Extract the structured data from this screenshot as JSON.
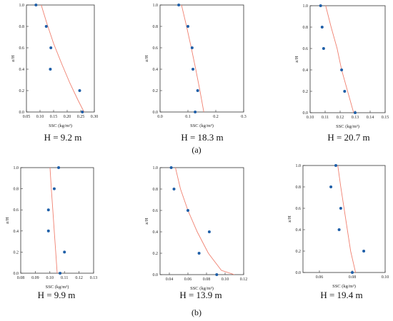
{
  "figure": {
    "panel_labels": [
      "(a)",
      "(b)"
    ]
  },
  "colors": {
    "point": "#1f5fa8",
    "line": "#f08070",
    "axis": "#333333"
  },
  "chart_data": [
    {
      "type": "scatter",
      "caption": "H = 9.2 m",
      "xlabel": "SSC (kg/m³)",
      "ylabel": "z/H",
      "xlim": [
        0.05,
        0.3
      ],
      "ylim": [
        0,
        1
      ],
      "xticks": [
        0.05,
        0.1,
        0.15,
        0.2,
        0.25,
        0.3
      ],
      "xtick_labels": [
        "0.05",
        "0.10",
        "0.15",
        "0.20",
        "0.25",
        "0.30"
      ],
      "yticks": [
        0,
        0.2,
        0.4,
        0.6,
        0.8,
        1.0
      ],
      "ytick_labels": [
        "0.0",
        "0.2",
        "0.4",
        "0.6",
        "0.8",
        "1.0"
      ],
      "points": [
        {
          "x": 0.085,
          "y": 1.0
        },
        {
          "x": 0.123,
          "y": 0.8
        },
        {
          "x": 0.14,
          "y": 0.6
        },
        {
          "x": 0.138,
          "y": 0.4
        },
        {
          "x": 0.246,
          "y": 0.2
        },
        {
          "x": 0.256,
          "y": 0.0
        }
      ],
      "fit": [
        {
          "x": 0.102,
          "y": 1.02
        },
        {
          "x": 0.125,
          "y": 0.83
        },
        {
          "x": 0.15,
          "y": 0.64
        },
        {
          "x": 0.18,
          "y": 0.45
        },
        {
          "x": 0.21,
          "y": 0.27
        },
        {
          "x": 0.24,
          "y": 0.11
        },
        {
          "x": 0.262,
          "y": 0.0
        }
      ]
    },
    {
      "type": "scatter",
      "caption": "H = 18.3 m",
      "xlabel": "SSC (kg/m³)",
      "ylabel": "z/H",
      "xlim": [
        0,
        0.3
      ],
      "ylim": [
        0,
        1
      ],
      "xticks": [
        0,
        0.1,
        0.2,
        0.3
      ],
      "xtick_labels": [
        "0.0",
        "0.1",
        "0.2",
        "0.3"
      ],
      "yticks": [
        0,
        0.2,
        0.4,
        0.6,
        0.8,
        1.0
      ],
      "ytick_labels": [
        "0.0",
        "0.2",
        "0.4",
        "0.6",
        "0.8",
        "1.0"
      ],
      "points": [
        {
          "x": 0.067,
          "y": 1.0
        },
        {
          "x": 0.1,
          "y": 0.8
        },
        {
          "x": 0.115,
          "y": 0.6
        },
        {
          "x": 0.118,
          "y": 0.4
        },
        {
          "x": 0.135,
          "y": 0.2
        },
        {
          "x": 0.126,
          "y": 0.0
        }
      ],
      "fit": [
        {
          "x": 0.075,
          "y": 1.02
        },
        {
          "x": 0.095,
          "y": 0.8
        },
        {
          "x": 0.112,
          "y": 0.6
        },
        {
          "x": 0.128,
          "y": 0.4
        },
        {
          "x": 0.143,
          "y": 0.2
        },
        {
          "x": 0.157,
          "y": 0.0
        }
      ]
    },
    {
      "type": "scatter",
      "caption": "H = 20.7 m",
      "xlabel": "SSC (kg/m³)",
      "ylabel": "z/H",
      "xlim": [
        0.1,
        0.15
      ],
      "ylim": [
        0,
        1
      ],
      "xticks": [
        0.1,
        0.11,
        0.12,
        0.13,
        0.14,
        0.15
      ],
      "xtick_labels": [
        "0.10",
        "0.11",
        "0.12",
        "0.13",
        "0.14",
        "0.15"
      ],
      "yticks": [
        0,
        0.2,
        0.4,
        0.6,
        0.8,
        1.0
      ],
      "ytick_labels": [
        "0.0",
        "0.2",
        "0.4",
        "0.6",
        "0.8",
        "1.0"
      ],
      "points": [
        {
          "x": 0.107,
          "y": 1.0
        },
        {
          "x": 0.108,
          "y": 0.8
        },
        {
          "x": 0.109,
          "y": 0.6
        },
        {
          "x": 0.121,
          "y": 0.4
        },
        {
          "x": 0.123,
          "y": 0.2
        },
        {
          "x": 0.13,
          "y": 0.0
        }
      ],
      "fit": [
        {
          "x": 0.11,
          "y": 1.02
        },
        {
          "x": 0.114,
          "y": 0.8
        },
        {
          "x": 0.118,
          "y": 0.6
        },
        {
          "x": 0.121,
          "y": 0.4
        },
        {
          "x": 0.125,
          "y": 0.2
        },
        {
          "x": 0.129,
          "y": 0.0
        }
      ]
    },
    {
      "type": "scatter",
      "caption": "H = 9.9 m",
      "xlabel": "SSC (kg/m³)",
      "ylabel": "z/H",
      "xlim": [
        0.08,
        0.13
      ],
      "ylim": [
        0,
        1
      ],
      "xticks": [
        0.08,
        0.09,
        0.1,
        0.11,
        0.12,
        0.13
      ],
      "xtick_labels": [
        "0.08",
        "0.09",
        "0.10",
        "0.11",
        "0.12",
        "0.13"
      ],
      "yticks": [
        0,
        0.2,
        0.4,
        0.6,
        0.8,
        1.0
      ],
      "ytick_labels": [
        "0.0",
        "0.2",
        "0.4",
        "0.6",
        "0.8",
        "1.0"
      ],
      "points": [
        {
          "x": 0.106,
          "y": 1.0
        },
        {
          "x": 0.103,
          "y": 0.8
        },
        {
          "x": 0.099,
          "y": 0.6
        },
        {
          "x": 0.099,
          "y": 0.4
        },
        {
          "x": 0.11,
          "y": 0.2
        },
        {
          "x": 0.107,
          "y": 0.0
        }
      ],
      "fit": [
        {
          "x": 0.1,
          "y": 1.02
        },
        {
          "x": 0.101,
          "y": 0.8
        },
        {
          "x": 0.102,
          "y": 0.6
        },
        {
          "x": 0.103,
          "y": 0.4
        },
        {
          "x": 0.104,
          "y": 0.2
        },
        {
          "x": 0.105,
          "y": 0.0
        }
      ]
    },
    {
      "type": "scatter",
      "caption": "H = 13.9 m",
      "xlabel": "SSC (kg/m³)",
      "ylabel": "z/H",
      "xlim": [
        0.03,
        0.12
      ],
      "ylim": [
        0,
        1
      ],
      "xticks": [
        0.04,
        0.06,
        0.08,
        0.1,
        0.12
      ],
      "xtick_labels": [
        "0.04",
        "0.06",
        "0.08",
        "0.10",
        "0.12"
      ],
      "yticks": [
        0,
        0.2,
        0.4,
        0.6,
        0.8,
        1.0
      ],
      "ytick_labels": [
        "0.0",
        "0.2",
        "0.4",
        "0.6",
        "0.8",
        "1.0"
      ],
      "points": [
        {
          "x": 0.042,
          "y": 1.0
        },
        {
          "x": 0.045,
          "y": 0.8
        },
        {
          "x": 0.06,
          "y": 0.6
        },
        {
          "x": 0.083,
          "y": 0.4
        },
        {
          "x": 0.072,
          "y": 0.2
        },
        {
          "x": 0.091,
          "y": 0.0
        }
      ],
      "fit": [
        {
          "x": 0.046,
          "y": 1.02
        },
        {
          "x": 0.052,
          "y": 0.8
        },
        {
          "x": 0.06,
          "y": 0.6
        },
        {
          "x": 0.07,
          "y": 0.4
        },
        {
          "x": 0.082,
          "y": 0.2
        },
        {
          "x": 0.096,
          "y": 0.04
        },
        {
          "x": 0.11,
          "y": 0.0
        }
      ]
    },
    {
      "type": "scatter",
      "caption": "H = 19.4 m",
      "xlabel": "SSC (kg/m³)",
      "ylabel": "z/H",
      "xlim": [
        0.05,
        0.1
      ],
      "ylim": [
        0,
        1
      ],
      "xticks": [
        0.06,
        0.08,
        0.1
      ],
      "xtick_labels": [
        "0.06",
        "0.08",
        "0.10"
      ],
      "yticks": [
        0,
        0.2,
        0.4,
        0.6,
        0.8,
        1.0
      ],
      "ytick_labels": [
        "0.0",
        "0.2",
        "0.4",
        "0.6",
        "0.8",
        "1.0"
      ],
      "points": [
        {
          "x": 0.07,
          "y": 1.0
        },
        {
          "x": 0.067,
          "y": 0.8
        },
        {
          "x": 0.073,
          "y": 0.6
        },
        {
          "x": 0.072,
          "y": 0.4
        },
        {
          "x": 0.087,
          "y": 0.2
        },
        {
          "x": 0.08,
          "y": 0.0
        }
      ],
      "fit": [
        {
          "x": 0.071,
          "y": 1.02
        },
        {
          "x": 0.073,
          "y": 0.8
        },
        {
          "x": 0.075,
          "y": 0.6
        },
        {
          "x": 0.077,
          "y": 0.4
        },
        {
          "x": 0.079,
          "y": 0.2
        },
        {
          "x": 0.082,
          "y": 0.0
        }
      ]
    }
  ]
}
